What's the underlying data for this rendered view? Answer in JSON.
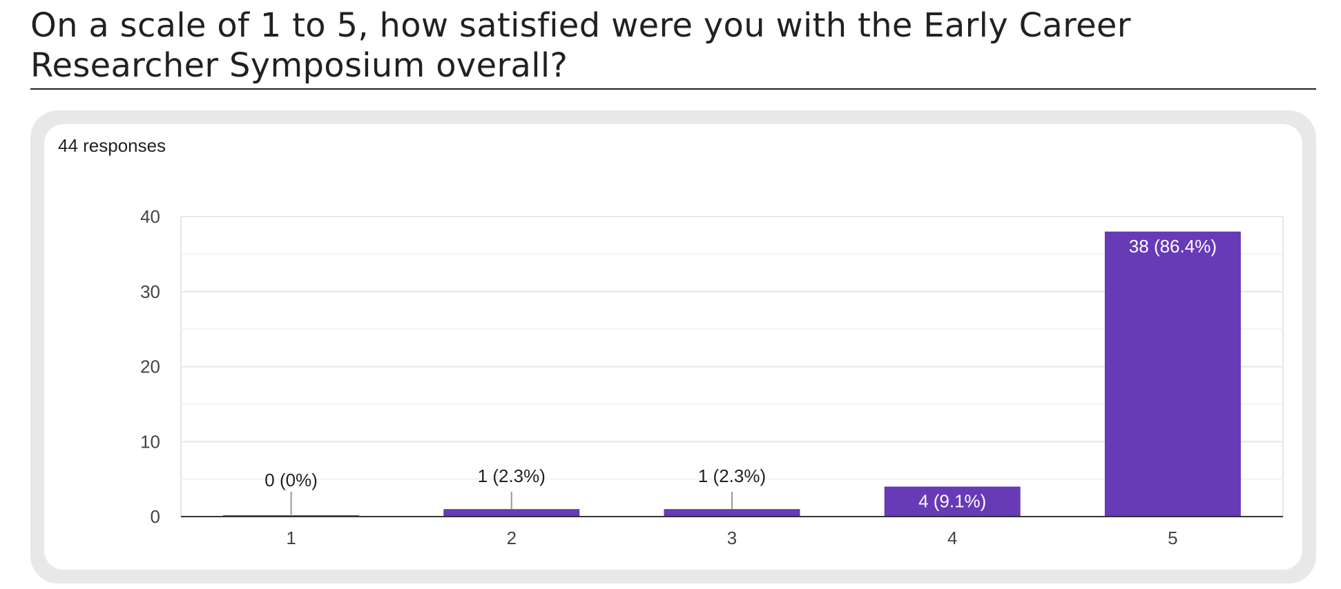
{
  "question": {
    "title": "On a scale of 1 to 5, how satisfied were you with the Early Career Researcher Symposium overall?"
  },
  "summary": {
    "responses_label": "44 responses"
  },
  "colors": {
    "bar": "#673ab7",
    "gridline": "#e6e6e6",
    "axis": "#333333",
    "card_border": "#e8e8e8"
  },
  "chart_data": {
    "type": "bar",
    "categories": [
      "1",
      "2",
      "3",
      "4",
      "5"
    ],
    "values": [
      0,
      1,
      1,
      4,
      38
    ],
    "data_labels": [
      "0 (0%)",
      "1 (2.3%)",
      "1 (2.3%)",
      "4 (9.1%)",
      "38 (86.4%)"
    ],
    "y_ticks": [
      0,
      10,
      20,
      30,
      40
    ],
    "ylim": [
      0,
      40
    ],
    "grid": true,
    "minor_grid": true,
    "xlabel": "",
    "ylabel": ""
  }
}
